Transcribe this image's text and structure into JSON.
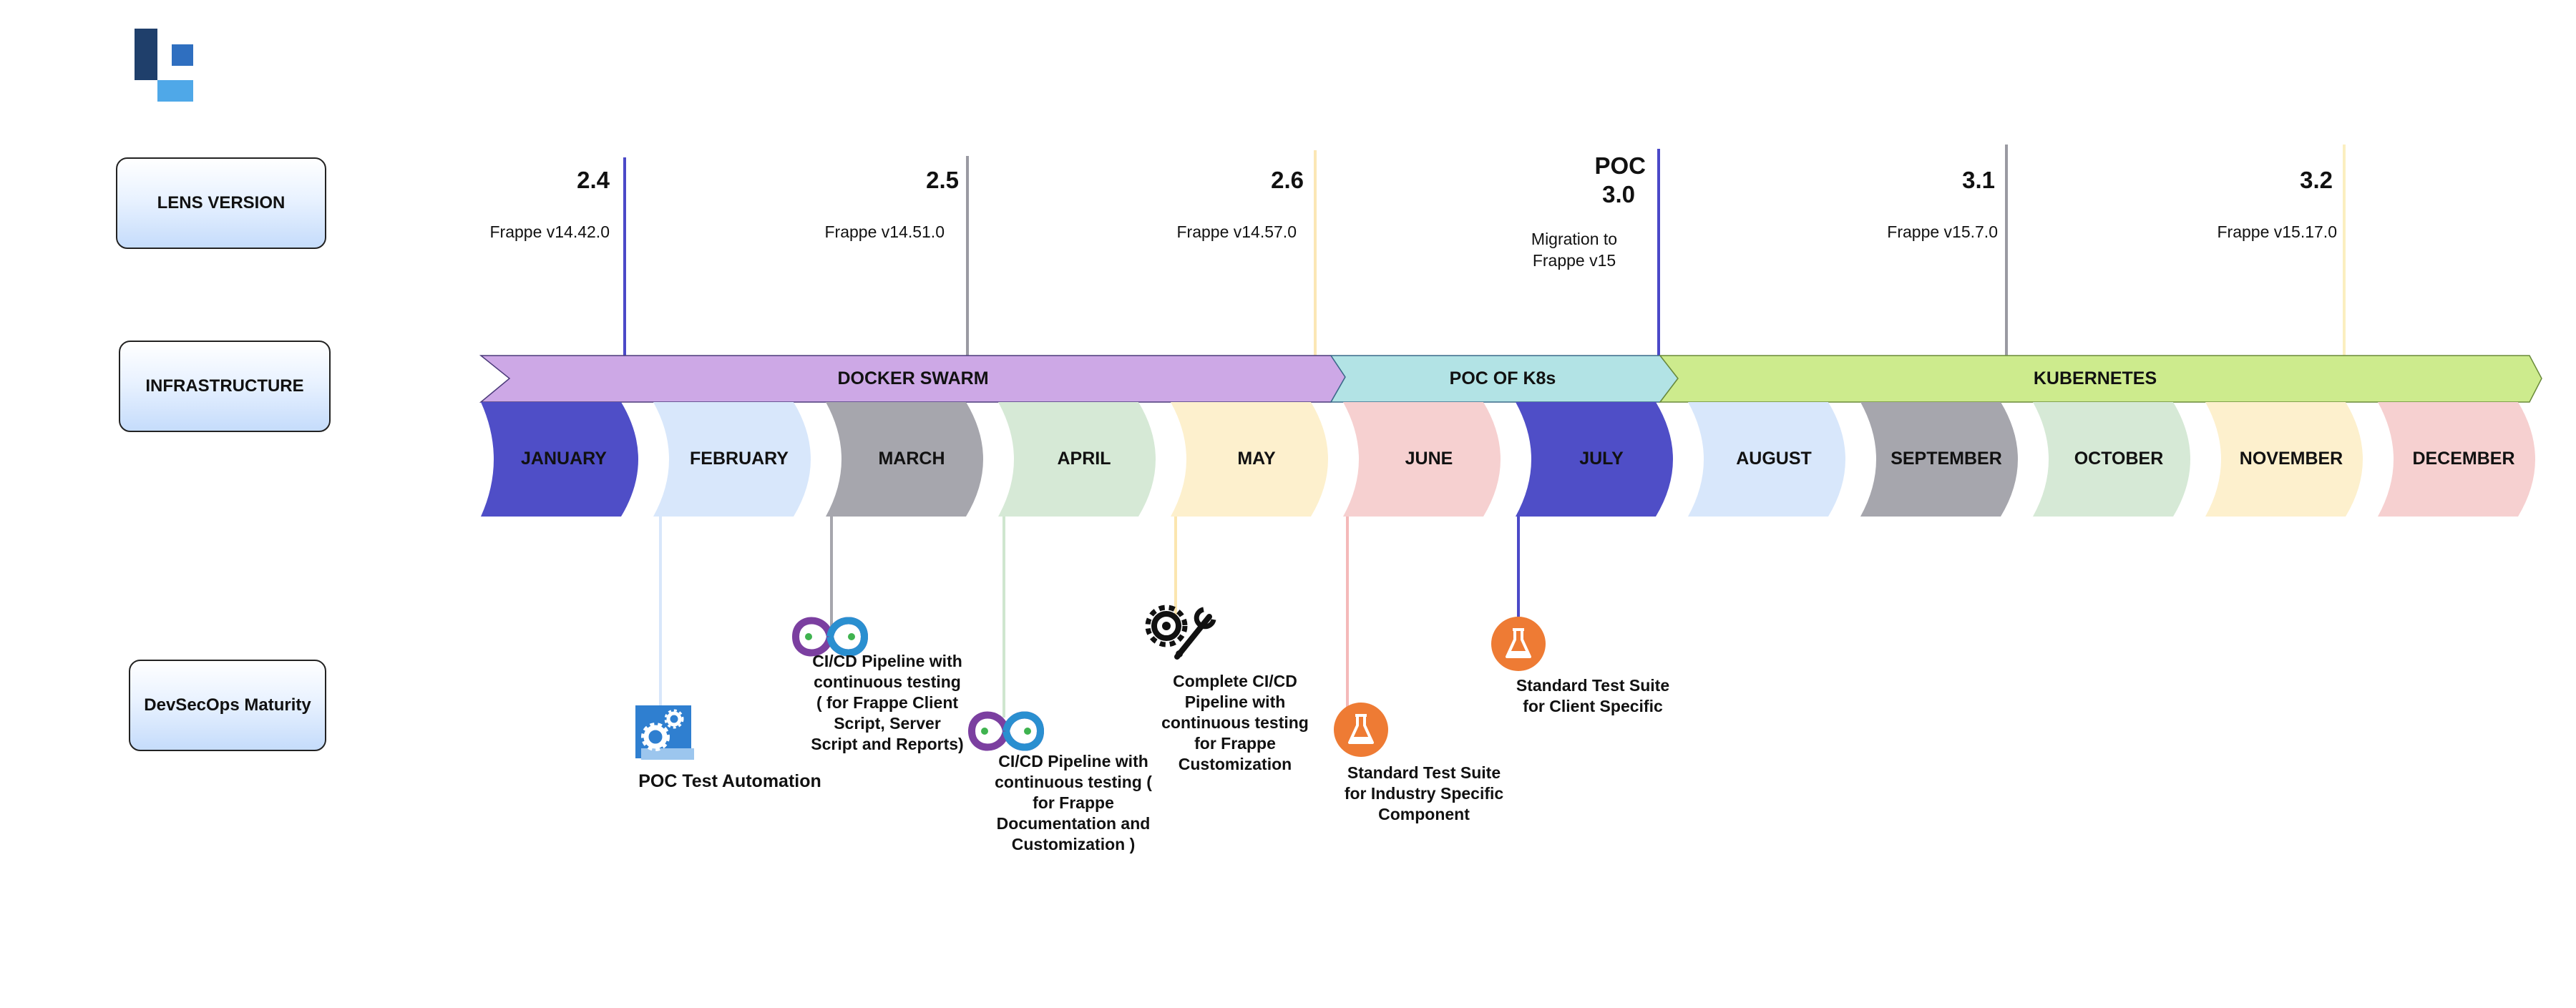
{
  "logo": {
    "name": "company-logo",
    "colors": [
      "#1f3f6b",
      "#2f6fc0",
      "#4fa8e8"
    ]
  },
  "row_labels": {
    "lens_version": "LENS VERSION",
    "infrastructure": "INFRASTRUCTURE",
    "devsecops": "DevSecOps Maturity"
  },
  "versions": [
    {
      "number": "2.4",
      "sub": "Frappe v14.42.0",
      "color": "#4b49c8"
    },
    {
      "number": "2.5",
      "sub": "Frappe v14.51.0",
      "color": "#9a9aa2"
    },
    {
      "number": "2.6",
      "sub": "Frappe v14.57.0",
      "color": "#fbe7b5"
    },
    {
      "number": "POC 3.0",
      "number_line1": "POC",
      "number_line2": "3.0",
      "sub_line1": "Migration to",
      "sub_line2": "Frappe v15",
      "color": "#4b49c8"
    },
    {
      "number": "3.1",
      "sub": "Frappe v15.7.0",
      "color": "#9a9aa2"
    },
    {
      "number": "3.2",
      "sub": "Frappe v15.17.0",
      "color": "#fbefc0"
    }
  ],
  "infrastructure_bands": [
    {
      "label": "DOCKER SWARM",
      "color": "#cda8e6"
    },
    {
      "label": "POC OF K8s",
      "color": "#b2e3e5"
    },
    {
      "label": "KUBERNETES",
      "color": "#cdeb8d"
    }
  ],
  "months": [
    {
      "label": "JANUARY",
      "color": "#4f4ec7"
    },
    {
      "label": "FEBRUARY",
      "color": "#d8e7fb"
    },
    {
      "label": "MARCH",
      "color": "#a6a6ad"
    },
    {
      "label": "APRIL",
      "color": "#d6e9d6"
    },
    {
      "label": "MAY",
      "color": "#fdf0cd"
    },
    {
      "label": "JUNE",
      "color": "#f6d0d0"
    },
    {
      "label": "JULY",
      "color": "#4f4ec7"
    },
    {
      "label": "AUGUST",
      "color": "#d8e7fb"
    },
    {
      "label": "SEPTEMBER",
      "color": "#a6a6ad"
    },
    {
      "label": "OCTOBER",
      "color": "#d6e9d6"
    },
    {
      "label": "NOVEMBER",
      "color": "#fdf0cd"
    },
    {
      "label": "DECEMBER",
      "color": "#f6d0d0"
    }
  ],
  "milestones": [
    {
      "icon": "gears-icon",
      "lines": [
        "POC Test Automation"
      ],
      "connector_color": "#d8e7fb"
    },
    {
      "icon": "infinity-pipeline-icon",
      "lines": [
        "CI/CD Pipeline with",
        "continuous testing",
        "( for Frappe Client",
        "Script, Server",
        "Script and Reports)"
      ],
      "connector_color": "#a6a6ad"
    },
    {
      "icon": "infinity-pipeline-icon",
      "lines": [
        "CI/CD Pipeline with",
        "continuous testing (",
        "for Frappe",
        "Documentation and",
        "Customization )"
      ],
      "connector_color": "#cfe6cf"
    },
    {
      "icon": "gear-wrench-icon",
      "lines": [
        "Complete CI/CD",
        "Pipeline with",
        "continuous testing",
        "for Frappe",
        "Customization"
      ],
      "connector_color": "#fbe6b0"
    },
    {
      "icon": "flask-icon",
      "lines": [
        "Standard Test Suite",
        "for Industry Specific",
        "Component"
      ],
      "connector_color": "#f4b9b9"
    },
    {
      "icon": "flask-icon",
      "lines": [
        "Standard Test Suite",
        "for Client Specific"
      ],
      "connector_color": "#4b49c8"
    }
  ]
}
